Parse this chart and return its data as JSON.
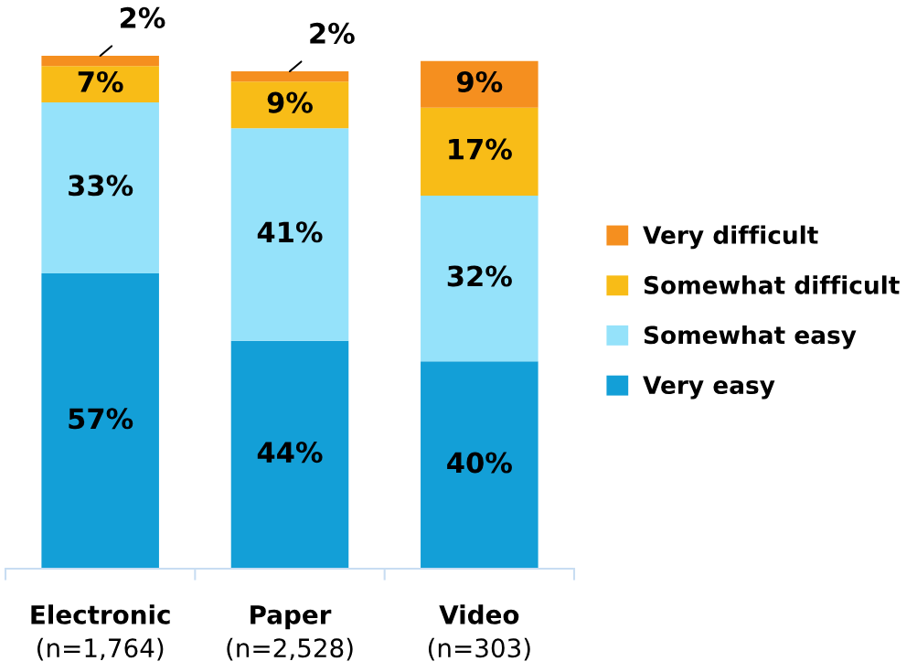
{
  "chart_data": {
    "type": "bar",
    "stacked": true,
    "legend": "right",
    "categories": [
      "Electronic\n(n=1,764)",
      "Paper\n(n=2,528)",
      "Video\n(n=303)"
    ],
    "series": [
      {
        "name": "Very easy",
        "color": "#139fd7",
        "values": [
          57,
          44,
          40
        ],
        "value_labels": [
          "57%",
          "44%",
          "40%"
        ]
      },
      {
        "name": "Somewhat easy",
        "color": "#95e2fa",
        "values": [
          33,
          41,
          32
        ],
        "value_labels": [
          "33%",
          "41%",
          "32%"
        ]
      },
      {
        "name": "Somewhat difficult",
        "color": "#f8bc17",
        "values": [
          7,
          9,
          17
        ],
        "value_labels": [
          "7%",
          "9%",
          "17%"
        ]
      },
      {
        "name": "Very difficult",
        "color": "#f58f1f",
        "values": [
          2,
          2,
          9
        ],
        "value_labels": [
          "2%",
          "2%",
          "9%"
        ]
      }
    ]
  }
}
